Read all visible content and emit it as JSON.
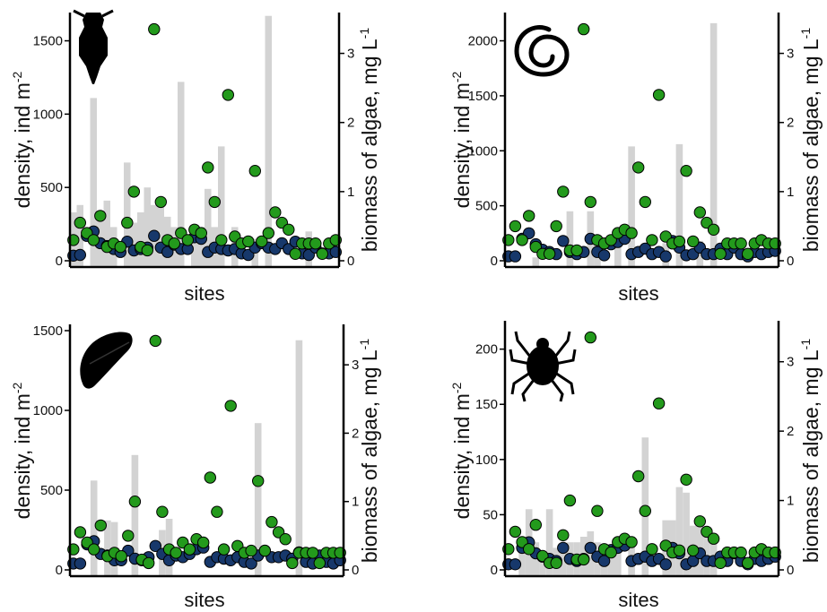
{
  "colors": {
    "bar": "#d3d3d3",
    "dark_points": "#17386b",
    "green_points": "#239a1c",
    "outline": "#000000"
  },
  "chart_data": [
    {
      "type": "bar",
      "organism_icon": "water-flea-icon",
      "xlabel": "sites",
      "ylabel": "density, ind m",
      "ylabel_sup": "-2",
      "y2label": "biomass of algae, mg L",
      "y2label_sup": "-1",
      "ylim": [
        0,
        1650
      ],
      "y2lim": [
        0,
        3.5
      ],
      "yticks": [
        0,
        500,
        1000,
        1500
      ],
      "y2ticks": [
        0,
        1,
        2,
        3
      ],
      "n_sites": 40,
      "series": [
        {
          "kind": "bars",
          "values": [
            330,
            380,
            0,
            1110,
            270,
            410,
            230,
            0,
            670,
            260,
            330,
            500,
            380,
            380,
            300,
            230,
            1220,
            0,
            240,
            230,
            490,
            230,
            780,
            0,
            230,
            0,
            0,
            150,
            0,
            1670,
            0,
            0,
            0,
            0,
            0,
            200,
            0,
            0,
            0,
            0
          ]
        },
        {
          "kind": "dark_points",
          "values": [
            35,
            40,
            170,
            200,
            120,
            100,
            80,
            60,
            130,
            70,
            80,
            90,
            170,
            90,
            60,
            110,
            80,
            80,
            160,
            150,
            60,
            90,
            80,
            70,
            80,
            50,
            40,
            90,
            120,
            90,
            80,
            120,
            80,
            130,
            50,
            40,
            90,
            50,
            50,
            60
          ]
        },
        {
          "kind": "green_points",
          "values": [
            0.3,
            0.55,
            0.4,
            0.3,
            0.65,
            0.2,
            0.25,
            0.2,
            0.55,
            1.0,
            0.2,
            0.15,
            3.35,
            0.85,
            0.3,
            0.25,
            0.4,
            0.3,
            0.45,
            0.4,
            1.35,
            0.85,
            0.3,
            2.4,
            0.35,
            0.25,
            0.28,
            1.3,
            0.28,
            0.4,
            0.7,
            0.55,
            0.45,
            0.1,
            0.25,
            0.25,
            0.25,
            0.1,
            0.25,
            0.3
          ]
        }
      ]
    },
    {
      "type": "bar",
      "organism_icon": "snail-icon",
      "xlabel": "sites",
      "ylabel": "density, ind m",
      "ylabel_sup": "-2",
      "y2label": "biomass of algae, mg L",
      "y2label_sup": "-1",
      "ylim": [
        0,
        2200
      ],
      "y2lim": [
        0,
        3.5
      ],
      "yticks": [
        0,
        500,
        1000,
        1500,
        2000
      ],
      "y2ticks": [
        0,
        1,
        2,
        3
      ],
      "n_sites": 40,
      "series": [
        {
          "kind": "bars",
          "values": [
            0,
            0,
            0,
            0,
            30,
            0,
            0,
            0,
            0,
            450,
            0,
            0,
            450,
            150,
            0,
            0,
            200,
            0,
            1040,
            0,
            0,
            0,
            0,
            160,
            0,
            1060,
            0,
            0,
            180,
            0,
            2160,
            0,
            0,
            0,
            0,
            0,
            0,
            0,
            0,
            0
          ]
        },
        {
          "kind": "dark_points",
          "values": [
            40,
            40,
            200,
            250,
            150,
            100,
            80,
            60,
            180,
            80,
            60,
            80,
            200,
            80,
            50,
            150,
            170,
            200,
            60,
            80,
            110,
            60,
            80,
            40,
            180,
            120,
            50,
            60,
            120,
            60,
            60,
            110,
            60,
            120,
            60,
            40,
            80,
            60,
            80,
            90
          ]
        },
        {
          "kind": "green_points",
          "values": [
            0.3,
            0.5,
            0.3,
            0.65,
            0.2,
            0.1,
            0.1,
            0.5,
            1.0,
            0.15,
            0.15,
            3.35,
            0.85,
            0.3,
            0.25,
            0.3,
            0.4,
            0.45,
            0.4,
            1.35,
            0.85,
            0.3,
            2.4,
            0.35,
            0.25,
            0.28,
            1.3,
            0.28,
            0.7,
            0.55,
            0.45,
            0.1,
            0.25,
            0.25,
            0.25,
            0.1,
            0.25,
            0.3,
            0.25,
            0.25
          ]
        }
      ]
    },
    {
      "type": "bar",
      "organism_icon": "isopod-icon",
      "xlabel": "sites",
      "ylabel": "density, ind m",
      "ylabel_sup": "-2",
      "y2label": "biomass of algae, mg L",
      "y2label_sup": "-1",
      "ylim": [
        0,
        1500
      ],
      "y2lim": [
        0,
        3.5
      ],
      "yticks": [
        0,
        500,
        1000,
        1500
      ],
      "y2ticks": [
        0,
        1,
        2,
        3
      ],
      "n_sites": 40,
      "series": [
        {
          "kind": "bars",
          "values": [
            0,
            0,
            0,
            560,
            0,
            310,
            300,
            0,
            0,
            720,
            0,
            0,
            0,
            250,
            320,
            0,
            0,
            0,
            0,
            0,
            0,
            0,
            0,
            0,
            0,
            0,
            0,
            920,
            0,
            0,
            0,
            0,
            0,
            1440,
            0,
            0,
            0,
            0,
            0,
            0
          ]
        },
        {
          "kind": "dark_points",
          "values": [
            40,
            40,
            160,
            180,
            100,
            90,
            60,
            60,
            120,
            70,
            60,
            80,
            150,
            100,
            60,
            90,
            80,
            100,
            130,
            140,
            50,
            80,
            70,
            60,
            80,
            50,
            40,
            90,
            120,
            80,
            80,
            90,
            70,
            110,
            50,
            40,
            90,
            50,
            40,
            60
          ]
        },
        {
          "kind": "green_points",
          "values": [
            0.3,
            0.55,
            0.4,
            0.3,
            0.65,
            0.2,
            0.25,
            0.2,
            0.5,
            1.0,
            0.15,
            0.1,
            3.35,
            0.85,
            0.3,
            0.25,
            0.4,
            0.3,
            0.45,
            0.4,
            1.35,
            0.85,
            0.3,
            2.4,
            0.35,
            0.25,
            0.28,
            1.3,
            0.28,
            0.7,
            0.55,
            0.45,
            0.1,
            0.25,
            0.25,
            0.25,
            0.1,
            0.25,
            0.25,
            0.25
          ]
        }
      ]
    },
    {
      "type": "bar",
      "organism_icon": "mite-icon",
      "xlabel": "sites",
      "ylabel": "density, ind m",
      "ylabel_sup": "-2",
      "y2label": "biomass of algae, mg L",
      "y2label_sup": "-1",
      "ylim": [
        0,
        220
      ],
      "y2lim": [
        0,
        3.5
      ],
      "yticks": [
        0,
        50,
        100,
        150,
        200
      ],
      "y2ticks": [
        0,
        1,
        2,
        3
      ],
      "n_sites": 40,
      "series": [
        {
          "kind": "bars",
          "values": [
            0,
            0,
            25,
            55,
            25,
            15,
            55,
            20,
            15,
            25,
            25,
            30,
            35,
            25,
            20,
            20,
            25,
            0,
            30,
            0,
            120,
            0,
            0,
            45,
            45,
            75,
            70,
            40,
            40,
            30,
            25,
            0,
            0,
            0,
            0,
            0,
            0,
            0,
            0,
            0
          ]
        },
        {
          "kind": "dark_points",
          "values": [
            5,
            5,
            20,
            25,
            15,
            12,
            10,
            8,
            20,
            10,
            8,
            10,
            20,
            12,
            8,
            18,
            20,
            22,
            8,
            10,
            12,
            8,
            10,
            5,
            20,
            15,
            5,
            8,
            15,
            8,
            8,
            12,
            8,
            15,
            8,
            5,
            10,
            8,
            10,
            12
          ]
        },
        {
          "kind": "green_points",
          "values": [
            0.3,
            0.55,
            0.4,
            0.3,
            0.65,
            0.2,
            0.1,
            0.1,
            0.5,
            1.0,
            0.15,
            0.15,
            3.35,
            0.85,
            0.3,
            0.25,
            0.4,
            0.45,
            0.4,
            1.35,
            0.85,
            0.3,
            2.4,
            0.35,
            0.25,
            0.28,
            1.3,
            0.28,
            0.7,
            0.55,
            0.45,
            0.1,
            0.25,
            0.25,
            0.25,
            0.1,
            0.25,
            0.3,
            0.25,
            0.25
          ]
        }
      ]
    }
  ]
}
